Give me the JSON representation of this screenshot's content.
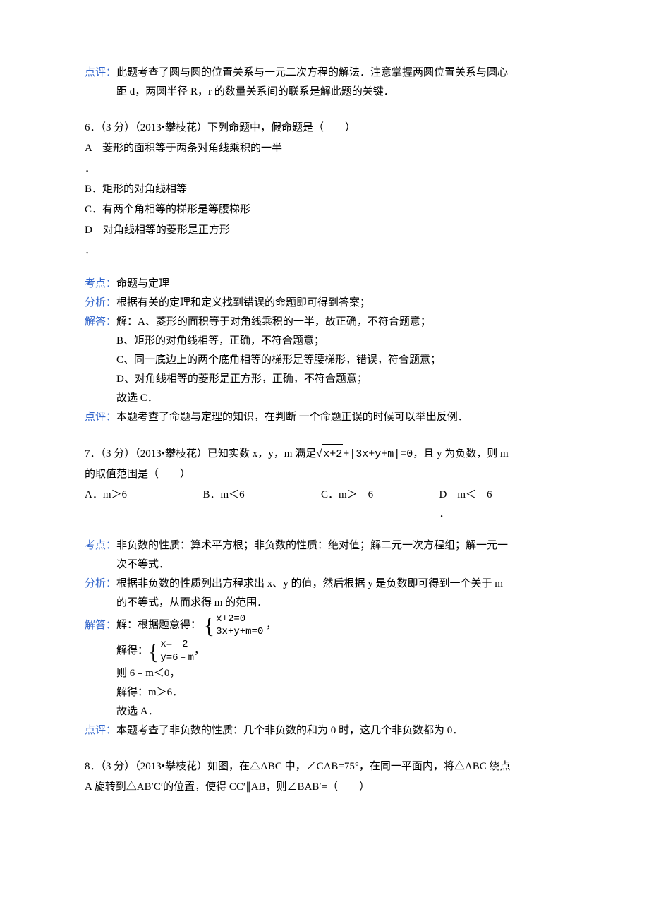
{
  "labels": {
    "dianping": "点评：",
    "kaodian": "考点：",
    "fenxi": "分析：",
    "jieda": "解答："
  },
  "sec5_review": {
    "line1": "此题考查了圆与圆的位置关系与一元二次方程的解法．注意掌握两圆位置关系与圆心",
    "line2": "距 d，两圆半径 R，r 的数量关系间的联系是解此题的关键．"
  },
  "q6": {
    "header": "6．（3 分）（2013•攀枝花）下列命题中，假命题是（　　）",
    "optA_label": "A",
    "optA_text": "菱形的面积等于两条对角线乘积的一半",
    "dot": "．",
    "optB": "B．矩形的对角线相等",
    "optC": "C．有两个角相等的梯形是等腰梯形",
    "optD_label": "D",
    "optD_text": "对角线相等的菱形是正方形",
    "kaodian": "命题与定理",
    "fenxi": "根据有关的定理和定义找到错误的命题即可得到答案；",
    "jieda_l1": "解：A、菱形的面积等于对角线乘积的一半，故正确，不符合题意；",
    "jieda_l2": "B、矩形的对角线相等，正确，不符合题意；",
    "jieda_l3": "C、同一底边上的两个底角相等的梯形是等腰梯形，错误，符合题意；",
    "jieda_l4": "D、对角线相等的菱形是正方形，正确，不符合题意；",
    "jieda_l5": "故选 C．",
    "dianping": "本题考查了命题与定理的知识，在判断 一个命题正误的时候可以举出反例．"
  },
  "q7": {
    "header_p1": "7．（3 分）（2013•攀枝花）已知实数 x，y，m 满足",
    "sqrt_arg": "x+2",
    "plus": "+",
    "abs": "|3x+y+m|",
    "eq": "=0",
    "header_p2": "，且 y 为负数，则 m",
    "header_p3": "的取值范围是（　　）",
    "optA": "A．m＞6",
    "optB": "B．m＜6",
    "optC": "C．m＞﹣6",
    "optD_label": "D",
    "optD_text": "m＜﹣6",
    "optD_dot": "．",
    "kaodian_l1": "非负数的性质：算术平方根；非负数的性质：绝对值；解二元一次方程组；解一元一",
    "kaodian_l2": "次不等式．",
    "fenxi_l1": "根据非负数的性质列出方程求出 x、y 的值，然后根据 y 是负数即可得到一个关于 m",
    "fenxi_l2": "的不等式，从而求得 m 的范围．",
    "jieda_pre": "解：根据题意得：",
    "eq1_l1": "x+2=0",
    "eq1_l2": "3x+y+m=0",
    "comma1": "，",
    "solve_pre": "解得：",
    "eq2_l1": "x=﹣2",
    "eq2_l2": "y=6﹣m",
    "comma2": "，",
    "jieda_l3": "则 6﹣m＜0，",
    "jieda_l4": "解得：m＞6．",
    "jieda_l5": "故选 A．",
    "dianping": "本题考查了非负数的性质：几个非负数的和为 0 时，这几个非负数都为 0．"
  },
  "q8": {
    "line1": "8．（3 分）（2013•攀枝花）如图，在△ABC 中，∠CAB=75°，在同一平面内，将△ABC 绕点",
    "line2": "A 旋转到△AB′C′的位置，使得 CC′∥AB，则∠BAB′=（　　）"
  }
}
